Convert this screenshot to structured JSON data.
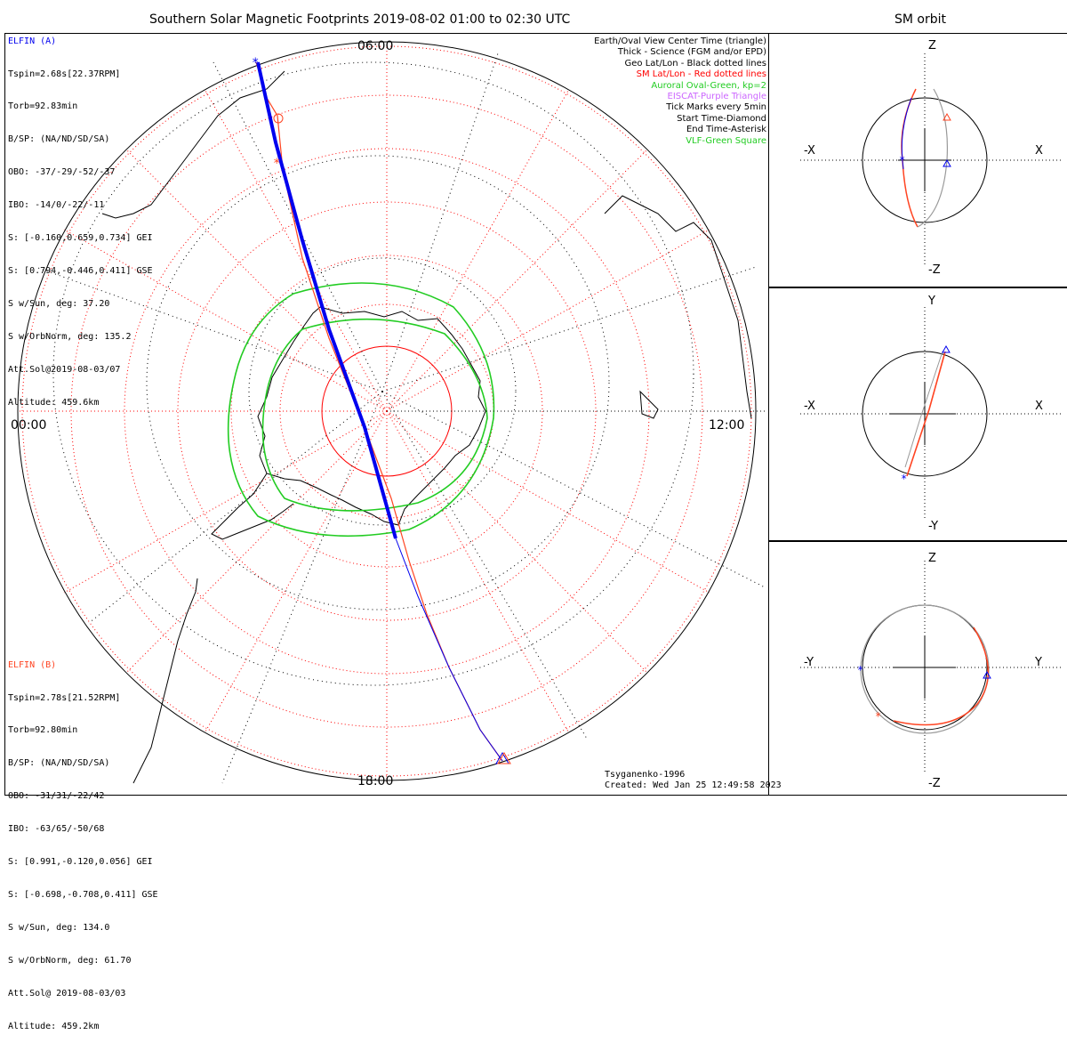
{
  "title": "Southern Solar Magnetic Footprints 2019-08-02 01:00 to 02:30 UTC",
  "orbit_title": "SM orbit",
  "clock_labels": {
    "top": "06:00",
    "left": "00:00",
    "right": "12:00",
    "bottom": "18:00"
  },
  "elfin_a": {
    "name": "ELFIN (A)",
    "lines": [
      "Tspin=2.68s[22.37RPM]",
      "Torb=92.83min",
      "B/SP: (NA/ND/SD/SA)",
      "OBO: -37/-29/-52/-37",
      "IBO: -14/0/-22/-11",
      "S: [-0.160,0.659,0.734] GEI",
      "S: [0.794,-0.446,0.411] GSE",
      "S w/Sun, deg: 37.20",
      "S w/OrbNorm, deg: 135.2",
      "Att.Sol@2019-08-03/07",
      "Altitude: 459.6km"
    ]
  },
  "elfin_b": {
    "name": "ELFIN (B)",
    "lines": [
      "Tspin=2.78s[21.52RPM]",
      "Torb=92.80min",
      "B/SP: (NA/ND/SD/SA)",
      "OBO: -31/31/-22/42",
      "IBO: -63/65/-50/68",
      "S: [0.991,-0.120,0.056] GEI",
      "S: [-0.698,-0.708,0.411] GSE",
      "S w/Sun, deg: 134.0",
      "S w/OrbNorm, deg: 61.70",
      "Att.Sol@ 2019-08-03/03",
      "Altitude: 459.2km"
    ]
  },
  "legend": [
    {
      "text": "Earth/Oval View Center Time (triangle)",
      "color": "#000000"
    },
    {
      "text": "Thick - Science (FGM and/or EPD)",
      "color": "#000000"
    },
    {
      "text": "Geo Lat/Lon - Black dotted lines",
      "color": "#000000"
    },
    {
      "text": "SM Lat/Lon - Red dotted lines",
      "color": "#ff0000"
    },
    {
      "text": "Auroral Oval-Green, kp=2",
      "color": "#22cc22"
    },
    {
      "text": "EISCAT-Purple Triangle",
      "color": "#cc66ff"
    },
    {
      "text": "Tick Marks every 5min",
      "color": "#000000"
    },
    {
      "text": "Start Time-Diamond",
      "color": "#000000"
    },
    {
      "text": "End Time-Asterisk",
      "color": "#000000"
    },
    {
      "text": "VLF-Green Square",
      "color": "#22cc22"
    }
  ],
  "credits": {
    "model": "Tsyganenko-1996",
    "created": "Created: Wed Jan 25 12:49:58 2023"
  },
  "orbit_panels": [
    {
      "top": "Z",
      "bottom": "-Z",
      "left": "-X",
      "right": "X"
    },
    {
      "top": "Y",
      "bottom": "-Y",
      "left": "-X",
      "right": "X"
    },
    {
      "top": "Z",
      "bottom": "-Z",
      "left": "-Y",
      "right": "Y"
    }
  ],
  "colors": {
    "elfin_a": "#0000ee",
    "elfin_b": "#ff4422",
    "oval": "#22cc22",
    "sm_grid": "#ff0000",
    "geo_grid": "#000000"
  }
}
